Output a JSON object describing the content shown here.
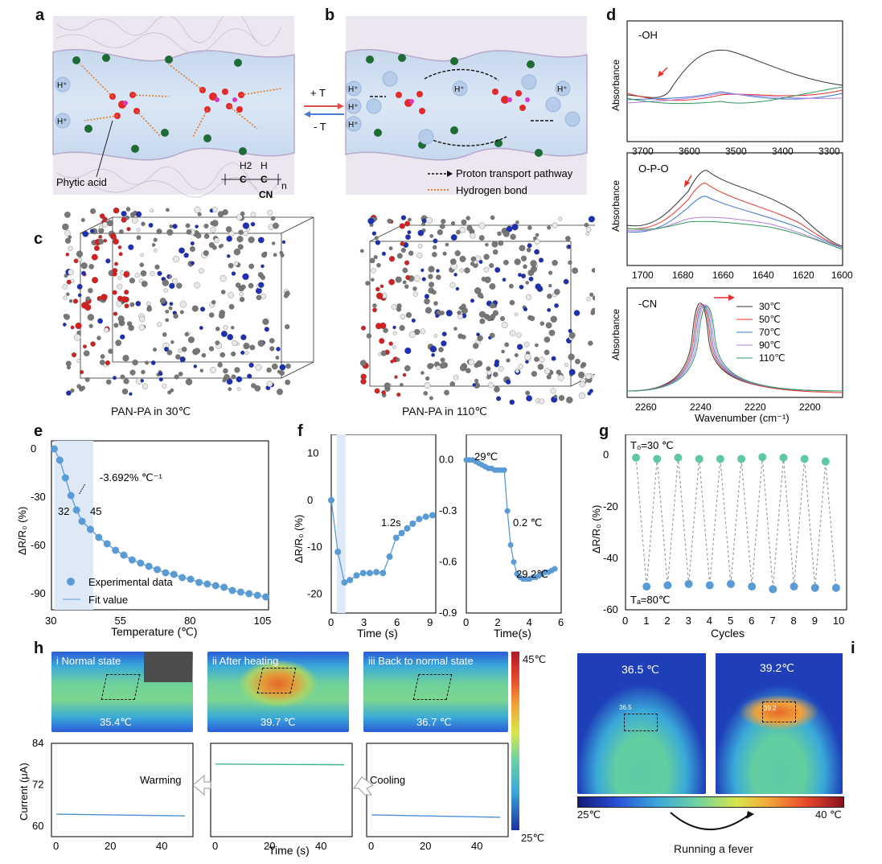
{
  "panels": {
    "a": "a",
    "b": "b",
    "c": "c",
    "d": "d",
    "e": "e",
    "f": "f",
    "g": "g",
    "h": "h",
    "i": "i"
  },
  "schematic": {
    "phytic_acid": "Phytic acid",
    "polymer_h2": "H2",
    "polymer_h": "H",
    "polymer_c1": "C",
    "polymer_c2": "C",
    "polymer_n": "n",
    "polymer_cn": "CN",
    "plus_t": "+ T",
    "minus_t": "- T",
    "hplus": "H⁺",
    "legend_proton": "Proton transport pathway",
    "legend_hbond": "Hydrogen bond"
  },
  "md": {
    "left_caption": "PAN-PA in 30℃",
    "right_caption": "PAN-PA in 110℃"
  },
  "ftir": {
    "ylabel": "Absorbance",
    "xlabel": "Wavenumber (cm⁻¹)",
    "colors": {
      "30": "#333333",
      "50": "#e8322b",
      "70": "#3b73d1",
      "90": "#b77fe0",
      "110": "#2e9a5a"
    },
    "legend": [
      "30℃",
      "50℃",
      "70℃",
      "90℃",
      "110℃"
    ],
    "oh": {
      "label": "-OH",
      "ticks": [
        "3700",
        "3600",
        "3500",
        "3400",
        "3300"
      ]
    },
    "opo": {
      "label": "O-P-O",
      "ticks": [
        "1700",
        "1680",
        "1660",
        "1640",
        "1620",
        "1600"
      ]
    },
    "cn": {
      "label": "-CN",
      "ticks": [
        "2260",
        "2240",
        "2220",
        "2200"
      ]
    }
  },
  "chart_data": [
    {
      "type": "scatter",
      "id": "e",
      "xlabel": "Temperature (℃)",
      "ylabel": "ΔR/R₀ (%)",
      "xlim": [
        30,
        108
      ],
      "ylim": [
        -100,
        5
      ],
      "xticks": [
        "30",
        "55",
        "80",
        "105"
      ],
      "yticks": [
        "0",
        "-30",
        "-60",
        "-90"
      ],
      "legend": [
        "Experimental data",
        "Fit value"
      ],
      "annotations": [
        "-3.692% ℃⁻¹",
        "32",
        "45"
      ],
      "x": [
        31,
        33,
        35,
        37,
        39,
        41,
        44,
        47,
        50,
        53,
        56,
        59,
        62,
        65,
        68,
        71,
        74,
        77,
        80,
        83,
        86,
        89,
        92,
        95,
        98,
        101,
        104,
        107
      ],
      "y": [
        0,
        -7,
        -18,
        -29,
        -38,
        -45,
        -50,
        -55,
        -59,
        -63,
        -66,
        -69,
        -71,
        -73,
        -75,
        -77,
        -78,
        -80,
        -81,
        -83,
        -84,
        -85,
        -86,
        -88,
        -89,
        -90,
        -91,
        -92
      ]
    },
    {
      "type": "line",
      "id": "f-left",
      "xlabel": "Time (s)",
      "ylabel": "ΔR/R₀ (%)",
      "xlim": [
        0,
        9.5
      ],
      "ylim": [
        -24,
        14
      ],
      "xticks": [
        "0",
        "3",
        "6",
        "9"
      ],
      "yticks": [
        "10",
        "0",
        "-10",
        "-20"
      ],
      "annotation": "1.2s",
      "x": [
        0,
        0.6,
        1.2,
        1.7,
        2.3,
        2.9,
        3.5,
        4.1,
        4.7,
        5.3,
        5.9,
        6.4,
        6.9,
        7.4,
        8.0,
        8.6,
        9.2
      ],
      "y": [
        0,
        -11,
        -17.5,
        -17,
        -16,
        -15.5,
        -15.5,
        -15.3,
        -15.5,
        -12,
        -8,
        -7,
        -6,
        -5,
        -4,
        -3.5,
        -3.2
      ]
    },
    {
      "type": "line",
      "id": "f-right",
      "xlabel": "Time(s)",
      "xlim": [
        0,
        6
      ],
      "ylim": [
        -0.9,
        0.15
      ],
      "xticks": [
        "0",
        "2",
        "4",
        "6"
      ],
      "yticks": [
        "0.0",
        "-0.3",
        "-0.6",
        "-0.9"
      ],
      "annotations": [
        "29℃",
        "0.2 ℃",
        "29.2℃"
      ],
      "x": [
        0,
        0.2,
        0.4,
        0.6,
        0.8,
        1.0,
        1.2,
        1.4,
        1.6,
        1.8,
        2.0,
        2.2,
        2.4,
        2.6,
        2.8,
        3.0,
        3.2,
        3.4,
        3.6,
        3.8,
        4.0,
        4.2,
        4.4,
        4.6,
        4.8,
        5.0,
        5.2,
        5.4,
        5.6
      ],
      "y": [
        0,
        0,
        0,
        -0.01,
        -0.02,
        -0.03,
        -0.04,
        -0.05,
        -0.05,
        -0.06,
        -0.06,
        -0.06,
        -0.06,
        -0.3,
        -0.5,
        -0.6,
        -0.67,
        -0.69,
        -0.7,
        -0.7,
        -0.7,
        -0.69,
        -0.69,
        -0.68,
        -0.67,
        -0.66,
        -0.66,
        -0.65,
        -0.64
      ]
    },
    {
      "type": "scatter",
      "id": "g",
      "xlabel": "Cycles",
      "ylabel": "ΔR/R₀ (%)",
      "xlim": [
        0,
        10.5
      ],
      "ylim": [
        -60,
        8
      ],
      "xticks": [
        "0",
        "1",
        "2",
        "3",
        "4",
        "5",
        "6",
        "7",
        "8",
        "9",
        "10"
      ],
      "yticks": [
        "0",
        "-20",
        "-40",
        "-60"
      ],
      "annotations": [
        "T₀=30 ℃",
        "Tₐ=80℃"
      ],
      "high_x": [
        0.5,
        1.5,
        2.5,
        3.5,
        4.5,
        5.5,
        6.5,
        7.5,
        8.5,
        9.5
      ],
      "high_y": [
        -1,
        -1.5,
        -1,
        -1.5,
        -1.5,
        -1.5,
        -0.8,
        -1,
        -1.5,
        -2.5
      ],
      "low_x": [
        1,
        2,
        3,
        4,
        5,
        6,
        7,
        8,
        9,
        10
      ],
      "low_y": [
        -51,
        -50.5,
        -50,
        -50.5,
        -50,
        -51,
        -52,
        -51,
        -51.5,
        -51.5
      ]
    },
    {
      "type": "line",
      "id": "h",
      "xlabel": "Time (s)",
      "ylabel": "Current (μA)",
      "ylim": [
        57,
        84
      ],
      "yticks": [
        "84",
        "72",
        "60"
      ],
      "xticks": [
        "0",
        "20",
        "40"
      ],
      "series": [
        {
          "name": "Normal state",
          "x": [
            0,
            50
          ],
          "y": [
            63.5,
            63.0
          ],
          "color": "#4a8fd6"
        },
        {
          "name": "After heating",
          "x": [
            0,
            50
          ],
          "y": [
            78.0,
            77.8
          ],
          "color": "#3fb58a"
        },
        {
          "name": "Back to normal state",
          "x": [
            0,
            50
          ],
          "y": [
            63.3,
            62.6
          ],
          "color": "#4a8fd6"
        }
      ],
      "arrows": [
        "Warming",
        "Cooling"
      ]
    }
  ],
  "thermal": {
    "scale_max": "45℃",
    "scale_min": "25℃",
    "i_label": "i  Normal state",
    "ii_label": "ii  After heating",
    "iii_label": "iii  Back to normal state",
    "i_temp": "35.4℃",
    "ii_temp": "39.7 ℃",
    "iii_temp": "36.7 ℃"
  },
  "fever": {
    "left_temp": "36.5 ℃",
    "right_temp": "39.2℃",
    "left_spot": "36.5",
    "right_spot": "39.2",
    "scale_min": "25℃",
    "scale_max": "40 ℃",
    "caption": "Running a fever"
  }
}
